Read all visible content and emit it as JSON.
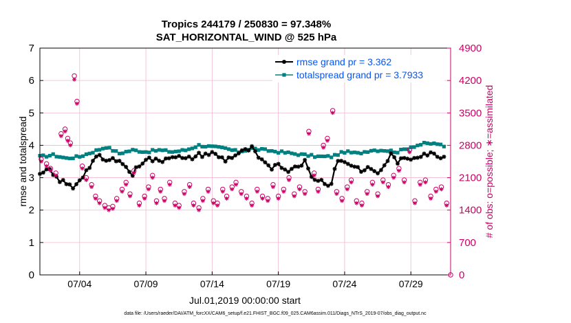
{
  "chart_data": {
    "type": "line",
    "title": "Tropics 244179 / 250830 = 97.348%",
    "subtitle": "SAT_HORIZONTAL_WIND @ 525 hPa",
    "xlabel": "Jul.01,2019 00:00:00 start",
    "ylabel": "rmse and totalspread",
    "ylabel_right": "# of obs: o=possible; ∗=assimilated",
    "footnote": "data file: /Users/raeder/DAI/ATM_forcXX/CAM6_setup/f.e21.FHIST_BGC.f09_025.CAM6assim.011/Diags_NTrS_2019-07/obs_diag_output.nc",
    "xlim": [
      1,
      32
    ],
    "ylim": [
      0,
      7
    ],
    "ylim_right": [
      0,
      4900
    ],
    "x_ticks": [
      4,
      9,
      14,
      19,
      24,
      29
    ],
    "x_tick_labels": [
      "07/04",
      "07/09",
      "07/14",
      "07/19",
      "07/24",
      "07/29"
    ],
    "y_ticks": [
      0,
      1,
      2,
      3,
      4,
      5,
      6,
      7
    ],
    "y_tick_labels": [
      "0",
      "1",
      "2",
      "3",
      "4",
      "5",
      "6",
      "7"
    ],
    "y_ticks_right": [
      0,
      700,
      1400,
      2100,
      2800,
      3500,
      4200,
      4900
    ],
    "y_tick_labels_right": [
      "0",
      "700",
      "1400",
      "2100",
      "2800",
      "3500",
      "4200",
      "4900"
    ],
    "colors": {
      "rmse": "#000000",
      "spread": "#008080",
      "obs": "#cc0066",
      "legend_text": "#0055ff",
      "grid": "#f0b8d0"
    },
    "series": [
      {
        "name": "rmse grand pr = 3.362",
        "anchors": [
          [
            1,
            3.05
          ],
          [
            1.6,
            3.25
          ],
          [
            2.2,
            3.0
          ],
          [
            3,
            2.8
          ],
          [
            3.5,
            2.7
          ],
          [
            4,
            2.95
          ],
          [
            4.5,
            3.2
          ],
          [
            5,
            3.5
          ],
          [
            5.5,
            3.65
          ],
          [
            6,
            3.5
          ],
          [
            7,
            3.6
          ],
          [
            7.5,
            3.3
          ],
          [
            8,
            3.1
          ],
          [
            8.5,
            3.4
          ],
          [
            9,
            3.6
          ],
          [
            10,
            3.5
          ],
          [
            11,
            3.7
          ],
          [
            12,
            3.55
          ],
          [
            13,
            3.7
          ],
          [
            14,
            3.75
          ],
          [
            15,
            3.55
          ],
          [
            16,
            3.75
          ],
          [
            17,
            3.9
          ],
          [
            17.5,
            3.6
          ],
          [
            18,
            3.4
          ],
          [
            18.5,
            3.3
          ],
          [
            19,
            3.5
          ],
          [
            19.5,
            3.2
          ],
          [
            20,
            3.3
          ],
          [
            21,
            3.5
          ],
          [
            21.5,
            3.0
          ],
          [
            22,
            2.95
          ],
          [
            22.5,
            2.85
          ],
          [
            23,
            2.8
          ],
          [
            23.2,
            3.3
          ],
          [
            23.5,
            3.5
          ],
          [
            24,
            3.5
          ],
          [
            25,
            3.3
          ],
          [
            25.5,
            3.2
          ],
          [
            26,
            3.3
          ],
          [
            26.5,
            3.1
          ],
          [
            27,
            3.4
          ],
          [
            27.5,
            3.7
          ],
          [
            28,
            3.5
          ],
          [
            29,
            3.6
          ],
          [
            30,
            3.75
          ],
          [
            31,
            3.7
          ],
          [
            31.5,
            3.65
          ]
        ]
      },
      {
        "name": "totalspread grand pr = 3.7933",
        "anchors": [
          [
            1,
            3.65
          ],
          [
            2,
            3.7
          ],
          [
            3,
            3.6
          ],
          [
            4,
            3.65
          ],
          [
            5,
            3.8
          ],
          [
            6,
            3.95
          ],
          [
            7,
            3.75
          ],
          [
            8,
            3.85
          ],
          [
            9,
            3.8
          ],
          [
            10,
            3.85
          ],
          [
            11,
            3.8
          ],
          [
            12,
            3.85
          ],
          [
            13,
            4.0
          ],
          [
            14,
            3.95
          ],
          [
            15,
            3.9
          ],
          [
            16,
            3.8
          ],
          [
            17,
            3.9
          ],
          [
            18,
            3.85
          ],
          [
            19,
            3.8
          ],
          [
            20,
            3.75
          ],
          [
            21,
            3.7
          ],
          [
            22,
            3.65
          ],
          [
            23,
            3.65
          ],
          [
            24,
            3.8
          ],
          [
            25,
            3.75
          ],
          [
            26,
            3.85
          ],
          [
            27,
            3.85
          ],
          [
            28,
            3.8
          ],
          [
            29,
            3.95
          ],
          [
            30,
            4.05
          ],
          [
            31,
            4.05
          ],
          [
            31.5,
            3.95
          ]
        ]
      }
    ],
    "obs_possible": [
      [
        1.1,
        2500
      ],
      [
        1.5,
        2400
      ],
      [
        1.8,
        2300
      ],
      [
        2.2,
        2200
      ],
      [
        2.6,
        3050
      ],
      [
        2.9,
        3150
      ],
      [
        3.1,
        2950
      ],
      [
        3.3,
        2850
      ],
      [
        3.6,
        4300
      ],
      [
        3.8,
        3750
      ],
      [
        4.2,
        2350
      ],
      [
        4.5,
        2100
      ],
      [
        4.9,
        1950
      ],
      [
        5.2,
        1700
      ],
      [
        5.5,
        1600
      ],
      [
        5.9,
        1500
      ],
      [
        6.2,
        1450
      ],
      [
        6.5,
        1480
      ],
      [
        6.8,
        1650
      ],
      [
        7.2,
        1850
      ],
      [
        7.5,
        2000
      ],
      [
        7.8,
        1750
      ],
      [
        8.1,
        2250
      ],
      [
        8.5,
        1550
      ],
      [
        8.9,
        1700
      ],
      [
        9.2,
        1900
      ],
      [
        9.5,
        2150
      ],
      [
        9.8,
        1600
      ],
      [
        10.1,
        1850
      ],
      [
        10.4,
        1650
      ],
      [
        10.8,
        2000
      ],
      [
        11.2,
        1550
      ],
      [
        11.5,
        1500
      ],
      [
        11.9,
        1800
      ],
      [
        12.3,
        1950
      ],
      [
        12.6,
        1550
      ],
      [
        13.0,
        1450
      ],
      [
        13.3,
        1650
      ],
      [
        13.7,
        1850
      ],
      [
        14.1,
        1600
      ],
      [
        14.4,
        1550
      ],
      [
        14.8,
        1850
      ],
      [
        15.1,
        1700
      ],
      [
        15.5,
        1900
      ],
      [
        15.8,
        2000
      ],
      [
        16.2,
        1800
      ],
      [
        16.6,
        1700
      ],
      [
        17.0,
        1550
      ],
      [
        17.4,
        1850
      ],
      [
        17.8,
        1700
      ],
      [
        18.2,
        1650
      ],
      [
        18.6,
        1950
      ],
      [
        19.0,
        1700
      ],
      [
        19.4,
        1850
      ],
      [
        19.8,
        2100
      ],
      [
        20.2,
        1750
      ],
      [
        20.6,
        1900
      ],
      [
        21.0,
        1800
      ],
      [
        21.3,
        3100
      ],
      [
        21.7,
        2200
      ],
      [
        22.0,
        1850
      ],
      [
        22.4,
        2800
      ],
      [
        22.7,
        2950
      ],
      [
        23.1,
        3550
      ],
      [
        23.4,
        1800
      ],
      [
        23.8,
        1650
      ],
      [
        24.2,
        1900
      ],
      [
        24.5,
        2050
      ],
      [
        24.9,
        1600
      ],
      [
        25.3,
        1550
      ],
      [
        25.7,
        1800
      ],
      [
        26.1,
        2000
      ],
      [
        26.5,
        1750
      ],
      [
        26.9,
        2050
      ],
      [
        27.3,
        1950
      ],
      [
        27.7,
        2150
      ],
      [
        28.1,
        2300
      ],
      [
        28.5,
        2050
      ],
      [
        28.9,
        2700
      ],
      [
        29.3,
        1600
      ],
      [
        29.7,
        2000
      ],
      [
        30.1,
        2050
      ],
      [
        30.5,
        1700
      ],
      [
        30.9,
        1850
      ],
      [
        31.3,
        1900
      ],
      [
        31.7,
        1550
      ]
    ],
    "obs_assimilated": [
      [
        1.1,
        2450
      ],
      [
        1.5,
        2350
      ],
      [
        1.8,
        2250
      ],
      [
        2.2,
        2150
      ],
      [
        2.6,
        3000
      ],
      [
        2.9,
        3100
      ],
      [
        3.1,
        2900
      ],
      [
        3.3,
        2800
      ],
      [
        3.6,
        4220
      ],
      [
        3.8,
        3700
      ],
      [
        4.2,
        2300
      ],
      [
        4.5,
        2050
      ],
      [
        4.9,
        1900
      ],
      [
        5.2,
        1650
      ],
      [
        5.5,
        1550
      ],
      [
        5.9,
        1450
      ],
      [
        6.2,
        1400
      ],
      [
        6.5,
        1430
      ],
      [
        6.8,
        1600
      ],
      [
        7.2,
        1800
      ],
      [
        7.5,
        1950
      ],
      [
        7.8,
        1700
      ],
      [
        8.1,
        2200
      ],
      [
        8.5,
        1500
      ],
      [
        8.9,
        1650
      ],
      [
        9.2,
        1850
      ],
      [
        9.5,
        2100
      ],
      [
        9.8,
        1550
      ],
      [
        10.1,
        1800
      ],
      [
        10.4,
        1600
      ],
      [
        10.8,
        1950
      ],
      [
        11.2,
        1500
      ],
      [
        11.5,
        1450
      ],
      [
        11.9,
        1750
      ],
      [
        12.3,
        1900
      ],
      [
        12.6,
        1500
      ],
      [
        13.0,
        1400
      ],
      [
        13.3,
        1600
      ],
      [
        13.7,
        1800
      ],
      [
        14.1,
        1550
      ],
      [
        14.4,
        1500
      ],
      [
        14.8,
        1800
      ],
      [
        15.1,
        1650
      ],
      [
        15.5,
        1850
      ],
      [
        15.8,
        1950
      ],
      [
        16.2,
        1750
      ],
      [
        16.6,
        1650
      ],
      [
        17.0,
        1500
      ],
      [
        17.4,
        1800
      ],
      [
        17.8,
        1650
      ],
      [
        18.2,
        1600
      ],
      [
        18.6,
        1900
      ],
      [
        19.0,
        1650
      ],
      [
        19.4,
        1800
      ],
      [
        19.8,
        2050
      ],
      [
        20.2,
        1700
      ],
      [
        20.6,
        1850
      ],
      [
        21.0,
        1750
      ],
      [
        21.3,
        3050
      ],
      [
        21.7,
        2150
      ],
      [
        22.0,
        1800
      ],
      [
        22.4,
        2750
      ],
      [
        22.7,
        2900
      ],
      [
        23.1,
        3500
      ],
      [
        23.4,
        1750
      ],
      [
        23.8,
        1600
      ],
      [
        24.2,
        1850
      ],
      [
        24.5,
        2000
      ],
      [
        24.9,
        1550
      ],
      [
        25.3,
        1500
      ],
      [
        25.7,
        1750
      ],
      [
        26.1,
        1950
      ],
      [
        26.5,
        1700
      ],
      [
        26.9,
        2000
      ],
      [
        27.3,
        1900
      ],
      [
        27.7,
        2100
      ],
      [
        28.1,
        2250
      ],
      [
        28.5,
        2000
      ],
      [
        28.9,
        2650
      ],
      [
        29.3,
        1550
      ],
      [
        29.7,
        1950
      ],
      [
        30.1,
        2000
      ],
      [
        30.5,
        1650
      ],
      [
        30.9,
        1800
      ],
      [
        31.3,
        1850
      ],
      [
        31.7,
        1500
      ]
    ],
    "obs_final": [
      32,
      0
    ],
    "legend_position": "top-right"
  }
}
